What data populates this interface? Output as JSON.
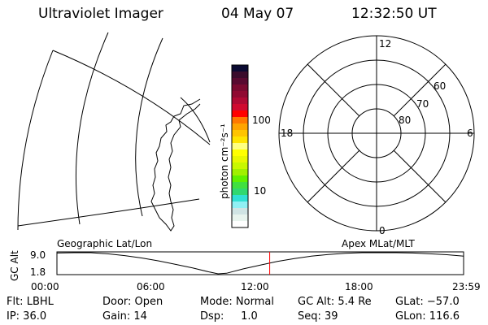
{
  "header": {
    "instrument": "Ultraviolet Imager",
    "date": "04 May 07",
    "time": "12:32:50 UT"
  },
  "colorbar": {
    "label": "photon cm⁻²s⁻¹",
    "ticks": [
      "100",
      "10"
    ],
    "colors": [
      "#0a0a32",
      "#3a0c2c",
      "#580a30",
      "#7a0a30",
      "#900a32",
      "#b00a34",
      "#d00a30",
      "#ff0000",
      "#ff7800",
      "#ffa400",
      "#ffc400",
      "#ffe400",
      "#ffff80",
      "#ffff00",
      "#e8f800",
      "#c8f800",
      "#a0f000",
      "#60f000",
      "#40e040",
      "#30d870",
      "#30e0d4",
      "#90f0f4",
      "#d0e4e4",
      "#e8f4ee",
      "#ffffff"
    ]
  },
  "polar": {
    "mlt_labels": {
      "top": "12",
      "bottom": "0",
      "left": "18",
      "right": "6"
    },
    "lat_labels": [
      "80",
      "70",
      "60"
    ]
  },
  "plot_labels": {
    "left": "Geographic Lat/Lon",
    "right": "Apex MLat/MLT"
  },
  "chart_data": {
    "type": "line",
    "ylabel": "GC Alt",
    "yticks": [
      "9.0",
      "1.8"
    ],
    "ylim": [
      1.8,
      9.0
    ],
    "xticks": [
      "00:00",
      "06:00",
      "12:00",
      "18:00",
      "23:59"
    ],
    "x": [
      "00:00",
      "01:00",
      "02:00",
      "03:00",
      "04:00",
      "05:00",
      "06:00",
      "07:00",
      "08:00",
      "09:00",
      "09:30",
      "10:00",
      "11:00",
      "12:00",
      "13:00",
      "14:00",
      "15:00",
      "16:00",
      "17:00",
      "18:00",
      "19:00",
      "20:00",
      "21:00",
      "22:00",
      "23:00",
      "23:59"
    ],
    "y": [
      8.9,
      9.0,
      9.0,
      8.6,
      8.0,
      7.2,
      6.2,
      5.0,
      3.8,
      2.4,
      1.8,
      2.0,
      3.5,
      4.8,
      6.0,
      7.0,
      7.8,
      8.4,
      8.8,
      9.0,
      9.0,
      9.0,
      8.9,
      8.6,
      8.3,
      7.8
    ],
    "marker_time": "12:32:50",
    "marker_color": "#ff0000"
  },
  "status": {
    "flt": "Flt: LBHL",
    "ip": "IP: 36.0",
    "door": "Door: Open",
    "gain": "Gain: 14",
    "mode": "Mode: Normal",
    "dsp": "Dsp:     1.0",
    "gc_alt": "GC Alt: 5.4 Re",
    "seq": "Seq: 39",
    "glat": "GLat: −57.0",
    "glon": "GLon: 116.6"
  }
}
